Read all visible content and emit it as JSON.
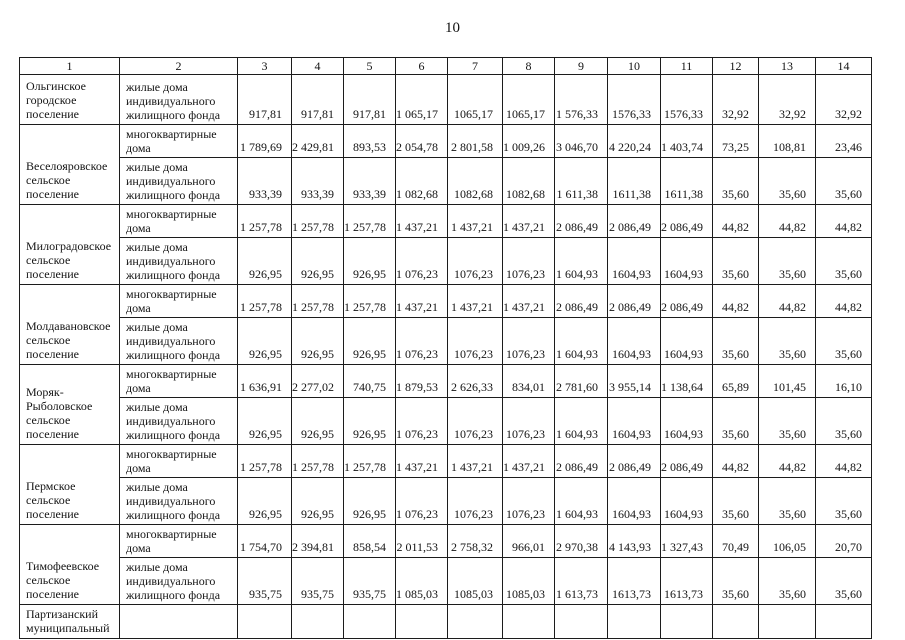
{
  "page": {
    "number": "10"
  },
  "colors": {
    "ink": "#141414",
    "border": "#1c1c1c",
    "paper": "#ffffff"
  },
  "labels": {
    "individual_housing": "жилые дома индивидуального жилищного фонда",
    "apartment_buildings": "многоквартирные дома"
  },
  "table": {
    "header": [
      "1",
      "2",
      "3",
      "4",
      "5",
      "6",
      "7",
      "8",
      "9",
      "10",
      "11",
      "12",
      "13",
      "14"
    ],
    "rows": [
      {
        "settlement": "Ольгинское городское поселение",
        "settlement_rowspan": 1,
        "type": "жилые дома индивидуального жилищного фонда",
        "values": [
          "917,81",
          "917,81",
          "917,81",
          "1 065,17",
          "1065,17",
          "1065,17",
          "1 576,33",
          "1576,33",
          "1576,33",
          "32,92",
          "32,92",
          "32,92"
        ]
      },
      {
        "settlement": "Веселояровское сельское поселение",
        "settlement_rowspan": 2,
        "type": "многоквартирные дома",
        "values": [
          "1 789,69",
          "2 429,81",
          "893,53",
          "2 054,78",
          "2 801,58",
          "1 009,26",
          "3 046,70",
          "4 220,24",
          "1 403,74",
          "73,25",
          "108,81",
          "23,46"
        ]
      },
      {
        "type": "жилые дома индивидуального жилищного фонда",
        "values": [
          "933,39",
          "933,39",
          "933,39",
          "1 082,68",
          "1082,68",
          "1082,68",
          "1 611,38",
          "1611,38",
          "1611,38",
          "35,60",
          "35,60",
          "35,60"
        ]
      },
      {
        "settlement": "Милоградовское сельское поселение",
        "settlement_rowspan": 2,
        "type": "многоквартирные дома",
        "values": [
          "1 257,78",
          "1 257,78",
          "1 257,78",
          "1 437,21",
          "1 437,21",
          "1 437,21",
          "2 086,49",
          "2 086,49",
          "2 086,49",
          "44,82",
          "44,82",
          "44,82"
        ]
      },
      {
        "type": "жилые дома индивидуального жилищного фонда",
        "values": [
          "926,95",
          "926,95",
          "926,95",
          "1 076,23",
          "1076,23",
          "1076,23",
          "1 604,93",
          "1604,93",
          "1604,93",
          "35,60",
          "35,60",
          "35,60"
        ]
      },
      {
        "settlement": "Молдавановское сельское поселение",
        "settlement_rowspan": 2,
        "type": "многоквартирные дома",
        "values": [
          "1 257,78",
          "1 257,78",
          "1 257,78",
          "1 437,21",
          "1 437,21",
          "1 437,21",
          "2 086,49",
          "2 086,49",
          "2 086,49",
          "44,82",
          "44,82",
          "44,82"
        ]
      },
      {
        "type": "жилые дома индивидуального жилищного фонда",
        "values": [
          "926,95",
          "926,95",
          "926,95",
          "1 076,23",
          "1076,23",
          "1076,23",
          "1 604,93",
          "1604,93",
          "1604,93",
          "35,60",
          "35,60",
          "35,60"
        ]
      },
      {
        "settlement": "Моряк-Рыболовское сельское поселение",
        "settlement_rowspan": 2,
        "type": "многоквартирные дома",
        "values": [
          "1 636,91",
          "2 277,02",
          "740,75",
          "1 879,53",
          "2 626,33",
          "834,01",
          "2 781,60",
          "3 955,14",
          "1 138,64",
          "65,89",
          "101,45",
          "16,10"
        ]
      },
      {
        "type": "жилые дома индивидуального жилищного фонда",
        "values": [
          "926,95",
          "926,95",
          "926,95",
          "1 076,23",
          "1076,23",
          "1076,23",
          "1 604,93",
          "1604,93",
          "1604,93",
          "35,60",
          "35,60",
          "35,60"
        ]
      },
      {
        "settlement": "Пермское сельское поселение",
        "settlement_rowspan": 2,
        "type": "многоквартирные дома",
        "values": [
          "1 257,78",
          "1 257,78",
          "1 257,78",
          "1 437,21",
          "1 437,21",
          "1 437,21",
          "2 086,49",
          "2 086,49",
          "2 086,49",
          "44,82",
          "44,82",
          "44,82"
        ]
      },
      {
        "type": "жилые дома индивидуального жилищного фонда",
        "values": [
          "926,95",
          "926,95",
          "926,95",
          "1 076,23",
          "1076,23",
          "1076,23",
          "1 604,93",
          "1604,93",
          "1604,93",
          "35,60",
          "35,60",
          "35,60"
        ]
      },
      {
        "settlement": "Тимофеевское сельское поселение",
        "settlement_rowspan": 2,
        "type": "многоквартирные дома",
        "values": [
          "1 754,70",
          "2 394,81",
          "858,54",
          "2 011,53",
          "2 758,32",
          "966,01",
          "2 970,38",
          "4 143,93",
          "1 327,43",
          "70,49",
          "106,05",
          "20,70"
        ]
      },
      {
        "type": "жилые дома индивидуального жилищного фонда",
        "values": [
          "935,75",
          "935,75",
          "935,75",
          "1 085,03",
          "1085,03",
          "1085,03",
          "1 613,73",
          "1613,73",
          "1613,73",
          "35,60",
          "35,60",
          "35,60"
        ]
      },
      {
        "settlement": "Партизанский муниципальный",
        "settlement_rowspan": 1,
        "type": "",
        "values": [
          "",
          "",
          "",
          "",
          "",
          "",
          "",
          "",
          "",
          "",
          "",
          ""
        ]
      }
    ]
  }
}
